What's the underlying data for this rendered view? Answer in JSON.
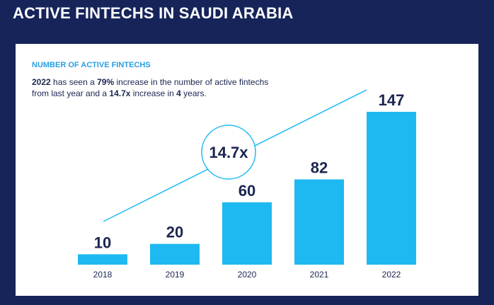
{
  "header": {
    "title": "ACTIVE FINTECHS IN SAUDI ARABIA"
  },
  "card": {
    "heading": "NUMBER OF ACTIVE FINTECHS",
    "description": {
      "year": "2022",
      "part1": " has seen a ",
      "pct": "79%",
      "part2": " increase in the number of active fintechs from last year and a ",
      "mult": "14.7x",
      "part3": " increase in ",
      "years": "4",
      "part4": " years."
    }
  },
  "colors": {
    "bar": "#1fb9f2",
    "text": "#1b2550",
    "background": "#16245a",
    "accent": "#2a9fe0"
  },
  "chart_data": {
    "type": "bar",
    "categories": [
      "2018",
      "2019",
      "2020",
      "2021",
      "2022"
    ],
    "values": [
      10,
      20,
      60,
      82,
      147
    ],
    "ylim": [
      0,
      147
    ],
    "grid": false,
    "annotations": [
      {
        "text": "14.7x",
        "shape": "circle-on-trend-line"
      }
    ]
  }
}
